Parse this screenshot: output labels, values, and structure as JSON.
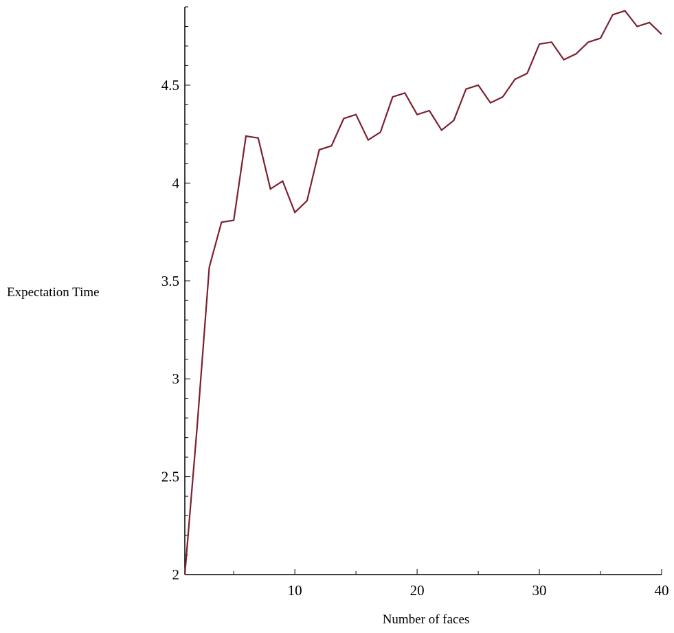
{
  "chart_data": {
    "type": "line",
    "title": "",
    "xlabel": "Number of faces",
    "ylabel": "Expectation Time",
    "xlim": [
      1,
      40
    ],
    "ylim": [
      2,
      4.9
    ],
    "x_ticks": [
      10,
      20,
      30,
      40
    ],
    "x_tick_labels": [
      "10",
      "20",
      "30",
      "40"
    ],
    "y_ticks": [
      2,
      2.5,
      3,
      3.5,
      4,
      4.5
    ],
    "y_tick_labels": [
      "2",
      "2.5",
      "3",
      "3.5",
      "4",
      "4.5"
    ],
    "grid": false,
    "legend": "none",
    "line_color": "#7b1f2e",
    "series": [
      {
        "x": [
          1,
          2,
          3,
          4,
          5,
          6,
          7,
          8,
          9,
          10,
          11,
          12,
          13,
          14,
          15,
          16,
          17,
          18,
          19,
          20,
          21,
          22,
          23,
          24,
          25,
          26,
          27,
          28,
          29,
          30,
          31,
          32,
          33,
          34,
          35,
          36,
          37,
          38,
          39,
          40
        ],
        "values": [
          2.0,
          2.75,
          3.57,
          3.8,
          3.81,
          4.24,
          4.23,
          3.97,
          4.01,
          3.85,
          3.91,
          4.17,
          4.19,
          4.33,
          4.35,
          4.22,
          4.26,
          4.44,
          4.46,
          4.35,
          4.37,
          4.27,
          4.32,
          4.48,
          4.5,
          4.41,
          4.44,
          4.53,
          4.56,
          4.71,
          4.72,
          4.63,
          4.66,
          4.72,
          4.74,
          4.86,
          4.88,
          4.8,
          4.82,
          4.76
        ]
      }
    ]
  }
}
